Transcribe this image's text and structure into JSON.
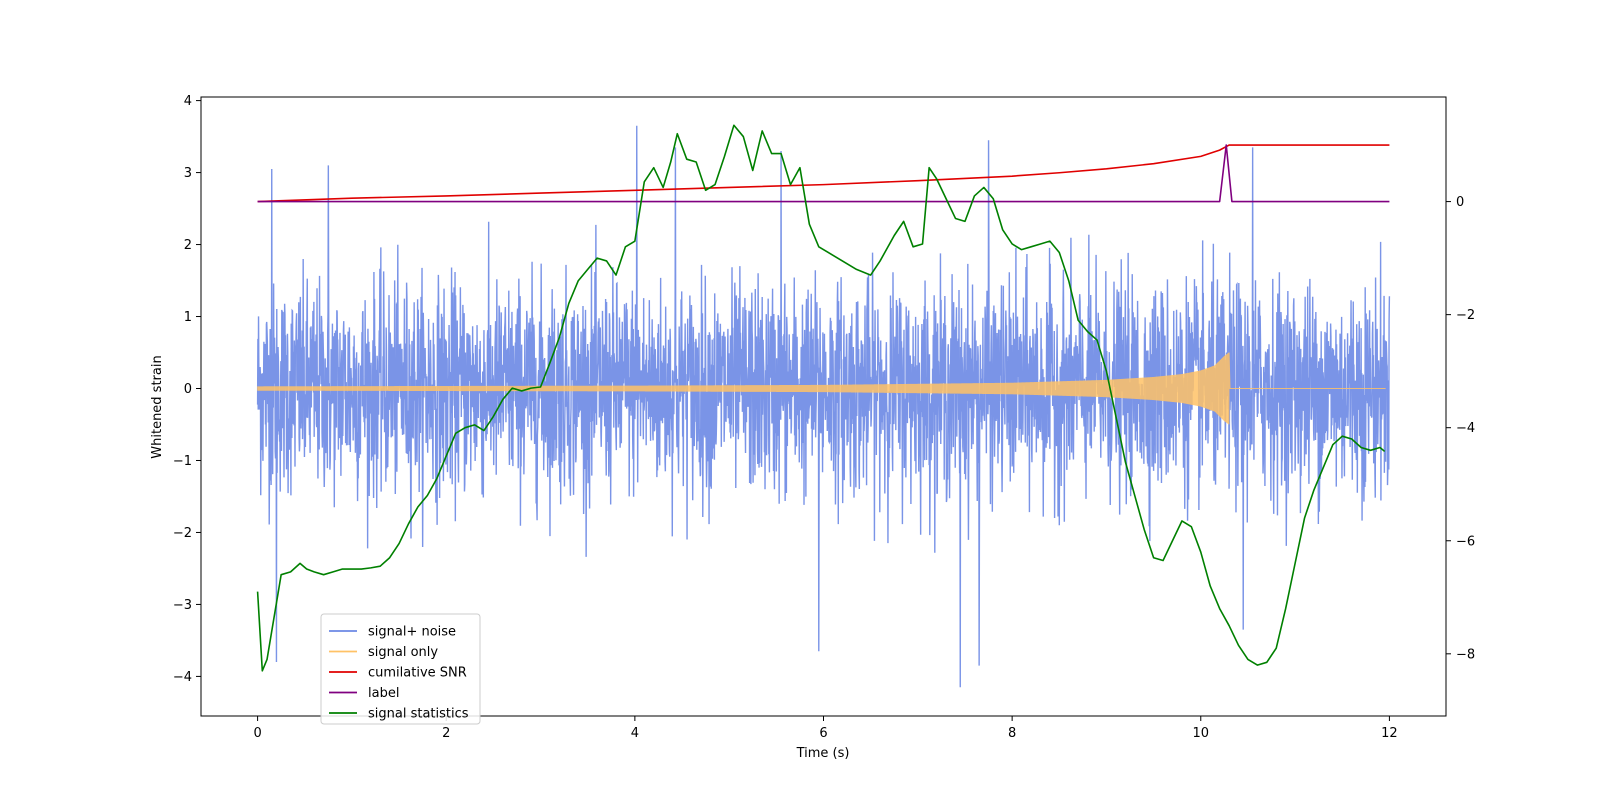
{
  "chart_data": {
    "type": "line",
    "xlabel": "Time (s)",
    "ylabel": "Whitened strain",
    "ylabel_right": "",
    "xlim": [
      -0.6,
      12.6
    ],
    "ylim_left": [
      -4.55,
      4.05
    ],
    "ylim_right": [
      -9.1,
      1.85
    ],
    "x_ticks": [
      0,
      2,
      4,
      6,
      8,
      10,
      12
    ],
    "x_tick_labels": [
      "0",
      "2",
      "4",
      "6",
      "8",
      "10",
      "12"
    ],
    "y_ticks_left": [
      4,
      3,
      2,
      1,
      0,
      -1,
      -2,
      -3,
      -4
    ],
    "y_tick_labels_left": [
      "4",
      "3",
      "2",
      "1",
      "0",
      "−1",
      "−2",
      "−3",
      "−4"
    ],
    "y_ticks_right": [
      0,
      -2,
      -4,
      -6,
      -8
    ],
    "y_tick_labels_right": [
      "0",
      "−2",
      "−4",
      "−6",
      "−8"
    ],
    "grid": false,
    "legend_position": "lower-left",
    "legend": [
      {
        "label": "signal+ noise",
        "color": "#6b88e4"
      },
      {
        "label": "signal only",
        "color": "#ffc266"
      },
      {
        "label": "cumilative SNR",
        "color": "#e00000"
      },
      {
        "label": "label",
        "color": "#800080"
      },
      {
        "label": "signal statistics",
        "color": "#008000"
      }
    ],
    "series": [
      {
        "name": "signal+ noise",
        "axis": "left",
        "color": "#6b88e4",
        "x_range": [
          0,
          12
        ],
        "typical_envelope": [
          -2.0,
          2.3
        ],
        "extremes": [
          {
            "x": 0.15,
            "y": 3.05
          },
          {
            "x": 0.75,
            "y": 3.1
          },
          {
            "x": 4.02,
            "y": 3.65
          },
          {
            "x": 4.43,
            "y": 3.35
          },
          {
            "x": 5.55,
            "y": 3.3
          },
          {
            "x": 7.75,
            "y": 3.45
          },
          {
            "x": 10.55,
            "y": 3.35
          },
          {
            "x": 0.2,
            "y": -3.8
          },
          {
            "x": 5.95,
            "y": -3.65
          },
          {
            "x": 7.45,
            "y": -4.15
          },
          {
            "x": 7.65,
            "y": -3.85
          },
          {
            "x": 10.45,
            "y": -3.35
          }
        ]
      },
      {
        "name": "signal only",
        "axis": "left",
        "color": "#ffc266",
        "chirp_end": 10.3,
        "envelope": [
          [
            0,
            0.03
          ],
          [
            4,
            0.04
          ],
          [
            6,
            0.05
          ],
          [
            8,
            0.08
          ],
          [
            9,
            0.12
          ],
          [
            9.5,
            0.16
          ],
          [
            9.8,
            0.2
          ],
          [
            10.0,
            0.25
          ],
          [
            10.15,
            0.32
          ],
          [
            10.25,
            0.45
          ],
          [
            10.3,
            0.5
          ]
        ]
      },
      {
        "name": "cumilative SNR",
        "axis": "right",
        "color": "#e00000",
        "x": [
          0,
          1,
          2,
          3,
          4,
          5,
          6,
          7,
          8,
          8.5,
          9,
          9.5,
          10,
          10.2,
          10.3,
          12
        ],
        "values": [
          0,
          0.06,
          0.1,
          0.15,
          0.2,
          0.25,
          0.3,
          0.37,
          0.45,
          0.51,
          0.58,
          0.67,
          0.8,
          0.91,
          1.0,
          1.0
        ]
      },
      {
        "name": "label",
        "axis": "right",
        "color": "#800080",
        "x": [
          0,
          10.2,
          10.27,
          10.33,
          12
        ],
        "values": [
          0,
          0,
          1,
          0,
          0
        ]
      },
      {
        "name": "signal statistics",
        "axis": "right",
        "color": "#008000",
        "x": [
          0,
          0.05,
          0.1,
          0.18,
          0.25,
          0.35,
          0.45,
          0.52,
          0.6,
          0.7,
          0.8,
          0.9,
          1.0,
          1.1,
          1.2,
          1.3,
          1.4,
          1.5,
          1.6,
          1.7,
          1.8,
          1.9,
          2.0,
          2.1,
          2.2,
          2.3,
          2.4,
          2.5,
          2.6,
          2.7,
          2.8,
          2.9,
          3.0,
          3.1,
          3.2,
          3.3,
          3.4,
          3.5,
          3.6,
          3.7,
          3.8,
          3.9,
          4.0,
          4.1,
          4.2,
          4.3,
          4.38,
          4.45,
          4.55,
          4.65,
          4.75,
          4.85,
          4.95,
          5.05,
          5.15,
          5.25,
          5.35,
          5.45,
          5.55,
          5.65,
          5.75,
          5.85,
          5.95,
          6.05,
          6.2,
          6.35,
          6.5,
          6.6,
          6.75,
          6.85,
          6.95,
          7.05,
          7.12,
          7.2,
          7.3,
          7.4,
          7.5,
          7.6,
          7.7,
          7.8,
          7.9,
          8.0,
          8.1,
          8.2,
          8.3,
          8.4,
          8.5,
          8.6,
          8.7,
          8.8,
          8.9,
          9.0,
          9.1,
          9.2,
          9.3,
          9.4,
          9.5,
          9.6,
          9.7,
          9.8,
          9.9,
          10.0,
          10.1,
          10.2,
          10.3,
          10.4,
          10.5,
          10.6,
          10.7,
          10.8,
          10.9,
          11.0,
          11.1,
          11.2,
          11.3,
          11.4,
          11.5,
          11.6,
          11.7,
          11.8,
          11.9,
          11.95
        ],
        "values": [
          -6.9,
          -8.3,
          -8.1,
          -7.3,
          -6.6,
          -6.55,
          -6.4,
          -6.5,
          -6.55,
          -6.6,
          -6.55,
          -6.5,
          -6.5,
          -6.5,
          -6.48,
          -6.45,
          -6.3,
          -6.05,
          -5.7,
          -5.4,
          -5.2,
          -4.9,
          -4.5,
          -4.1,
          -4.0,
          -3.95,
          -4.05,
          -3.8,
          -3.5,
          -3.3,
          -3.35,
          -3.3,
          -3.28,
          -2.85,
          -2.4,
          -1.8,
          -1.4,
          -1.2,
          -1.0,
          -1.05,
          -1.3,
          -0.8,
          -0.7,
          0.35,
          0.6,
          0.25,
          0.7,
          1.2,
          0.75,
          0.7,
          0.2,
          0.3,
          0.8,
          1.35,
          1.15,
          0.55,
          1.25,
          0.85,
          0.85,
          0.3,
          0.6,
          -0.4,
          -0.8,
          -0.9,
          -1.05,
          -1.2,
          -1.3,
          -1.05,
          -0.6,
          -0.35,
          -0.8,
          -0.75,
          0.6,
          0.4,
          0.05,
          -0.3,
          -0.35,
          0.1,
          0.25,
          0.05,
          -0.5,
          -0.75,
          -0.85,
          -0.8,
          -0.75,
          -0.7,
          -0.9,
          -1.4,
          -2.1,
          -2.3,
          -2.45,
          -3.0,
          -3.8,
          -4.6,
          -5.2,
          -5.8,
          -6.3,
          -6.35,
          -6.0,
          -5.65,
          -5.75,
          -6.2,
          -6.8,
          -7.2,
          -7.5,
          -7.85,
          -8.1,
          -8.2,
          -8.15,
          -7.9,
          -7.2,
          -6.4,
          -5.6,
          -5.1,
          -4.7,
          -4.3,
          -4.15,
          -4.2,
          -4.35,
          -4.4,
          -4.35,
          -4.42
        ]
      }
    ]
  }
}
